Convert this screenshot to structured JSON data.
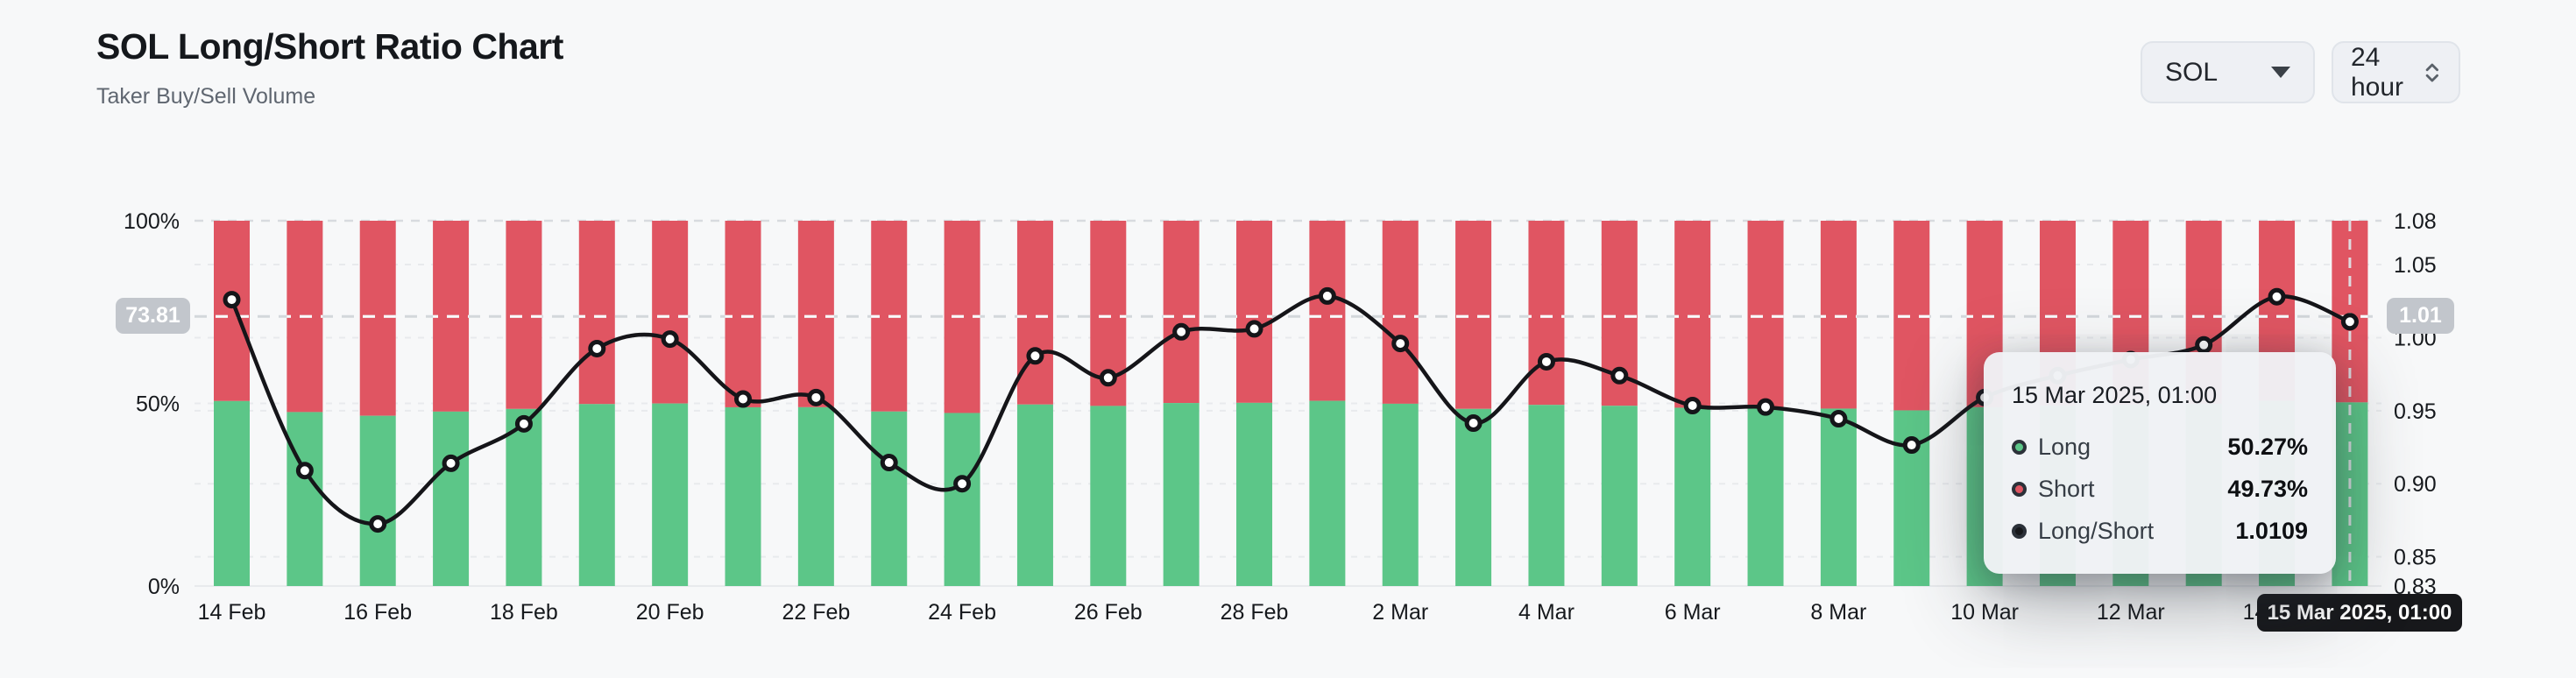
{
  "header": {
    "title": "SOL Long/Short Ratio Chart",
    "subtitle": "Taker Buy/Sell Volume"
  },
  "controls": {
    "coin": "SOL",
    "interval": "24 hour"
  },
  "crosshair": {
    "left_badge": "73.81",
    "right_badge": "1.01",
    "x_badge": "15 Mar 2025, 01:00"
  },
  "tooltip": {
    "title": "15 Mar 2025, 01:00",
    "rows": [
      {
        "label": "Long",
        "value": "50.27%",
        "color": "#5cc688"
      },
      {
        "label": "Short",
        "value": "49.73%",
        "color": "#e05562"
      },
      {
        "label": "Long/Short",
        "value": "1.0109",
        "color": "#17181b"
      }
    ]
  },
  "chart_data": {
    "type": "bar",
    "subtype": "percent-stacked-bars-with-ratio-line",
    "title": "SOL Long/Short Ratio Chart",
    "x": [
      "14 Feb",
      "15 Feb",
      "16 Feb",
      "17 Feb",
      "18 Feb",
      "19 Feb",
      "20 Feb",
      "21 Feb",
      "22 Feb",
      "23 Feb",
      "24 Feb",
      "25 Feb",
      "26 Feb",
      "27 Feb",
      "28 Feb",
      "1 Mar",
      "2 Mar",
      "3 Mar",
      "4 Mar",
      "5 Mar",
      "6 Mar",
      "7 Mar",
      "8 Mar",
      "9 Mar",
      "10 Mar",
      "11 Mar",
      "12 Mar",
      "13 Mar",
      "14 Mar",
      "15 Mar"
    ],
    "series": [
      {
        "name": "Long",
        "unit": "%",
        "axis": "left",
        "color": "#5cc688",
        "values": [
          50.64,
          47.62,
          46.6,
          47.75,
          48.48,
          49.81,
          49.97,
          48.93,
          48.95,
          47.77,
          47.37,
          49.69,
          49.3,
          50.1,
          50.15,
          50.7,
          49.9,
          48.49,
          49.58,
          49.34,
          48.81,
          48.78,
          48.57,
          48.09,
          48.95,
          49.34,
          49.62,
          49.87,
          50.69,
          50.27
        ]
      },
      {
        "name": "Short",
        "unit": "%",
        "axis": "left",
        "color": "#e05562",
        "values": [
          49.36,
          52.38,
          53.4,
          52.25,
          51.52,
          50.19,
          50.03,
          51.07,
          51.05,
          52.23,
          52.63,
          50.31,
          50.7,
          49.9,
          49.85,
          49.3,
          50.1,
          51.51,
          50.42,
          50.66,
          51.19,
          51.22,
          51.43,
          51.91,
          51.05,
          50.66,
          50.38,
          50.13,
          49.31,
          49.73
        ]
      },
      {
        "name": "Long/Short",
        "axis": "right",
        "color": "#151519",
        "values": [
          1.026,
          0.909,
          0.8725,
          0.914,
          0.941,
          0.9925,
          0.999,
          0.958,
          0.959,
          0.9145,
          0.9,
          0.9875,
          0.9725,
          1.004,
          1.006,
          1.0285,
          0.996,
          0.9415,
          0.9835,
          0.974,
          0.9535,
          0.9525,
          0.9445,
          0.9265,
          0.959,
          0.974,
          0.985,
          0.995,
          1.028,
          1.0109
        ]
      }
    ],
    "left_axis": {
      "ticks": [
        0,
        50,
        100
      ],
      "tick_labels": [
        "0%",
        "50%",
        "100%"
      ],
      "range": [
        0,
        100
      ]
    },
    "right_axis": {
      "ticks": [
        0.83,
        0.85,
        0.9,
        0.95,
        1.0,
        1.05,
        1.08
      ],
      "tick_labels": [
        "0.83",
        "0.85",
        "0.90",
        "0.95",
        "1.00",
        "1.05",
        "1.08"
      ],
      "range": [
        0.83,
        1.08
      ]
    },
    "x_tick_labels": [
      "14 Feb",
      "16 Feb",
      "18 Feb",
      "20 Feb",
      "22 Feb",
      "24 Feb",
      "26 Feb",
      "28 Feb",
      "2 Mar",
      "4 Mar",
      "6 Mar",
      "8 Mar",
      "10 Mar",
      "12 Mar",
      "14 Mar"
    ],
    "grid": "dashed-horizontal",
    "legend_position": "tooltip-only",
    "highlight": {
      "x": "15 Mar 2025, 01:00",
      "percent": 73.81,
      "ratio_label": "1.01"
    }
  }
}
